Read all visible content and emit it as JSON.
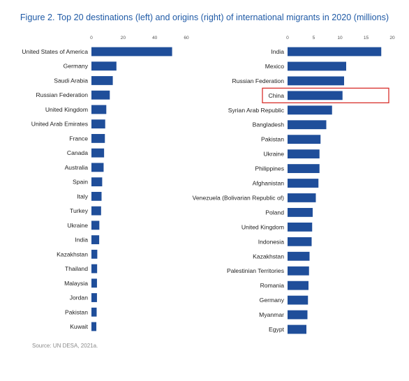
{
  "figure": {
    "title": "Figure 2. Top 20 destinations (left) and origins (right) of international migrants in 2020 (millions)",
    "source": "Source: UN DESA, 2021a."
  },
  "colors": {
    "bar": "#1f4e9a",
    "highlight": "#d9302c"
  },
  "chart_data": [
    {
      "type": "bar",
      "orientation": "horizontal",
      "title": "",
      "categories": [
        "United States of America",
        "Germany",
        "Saudi Arabia",
        "Russian Federation",
        "United Kingdom",
        "United Arab Emirates",
        "France",
        "Canada",
        "Australia",
        "Spain",
        "Italy",
        "Turkey",
        "Ukraine",
        "India",
        "Kazakhstan",
        "Thailand",
        "Malaysia",
        "Jordan",
        "Pakistan",
        "Kuwait"
      ],
      "values": [
        51,
        15.8,
        13.5,
        11.6,
        9.4,
        8.7,
        8.5,
        8.0,
        7.7,
        6.8,
        6.4,
        6.1,
        5.0,
        4.9,
        3.7,
        3.6,
        3.5,
        3.5,
        3.3,
        3.1
      ],
      "xlim": [
        0,
        60
      ],
      "xticks": [
        0,
        20,
        40,
        60
      ],
      "grid": false,
      "highlighted": []
    },
    {
      "type": "bar",
      "orientation": "horizontal",
      "title": "",
      "categories": [
        "India",
        "Mexico",
        "Russian Federation",
        "China",
        "Syrian Arab Republic",
        "Bangladesh",
        "Pakistan",
        "Ukraine",
        "Philippines",
        "Afghanistan",
        "Venezuela (Bolivarian Republic of)",
        "Poland",
        "United Kingdom",
        "Indonesia",
        "Kazakhstan",
        "Palestinian Territories",
        "Romania",
        "Germany",
        "Myanmar",
        "Egypt"
      ],
      "values": [
        17.9,
        11.2,
        10.8,
        10.5,
        8.5,
        7.4,
        6.3,
        6.1,
        6.1,
        5.9,
        5.4,
        4.8,
        4.7,
        4.6,
        4.2,
        4.1,
        4.0,
        3.9,
        3.8,
        3.6
      ],
      "xlim": [
        0,
        20
      ],
      "xticks": [
        0,
        5,
        10,
        15,
        20
      ],
      "grid": false,
      "highlighted": [
        "China"
      ]
    }
  ]
}
